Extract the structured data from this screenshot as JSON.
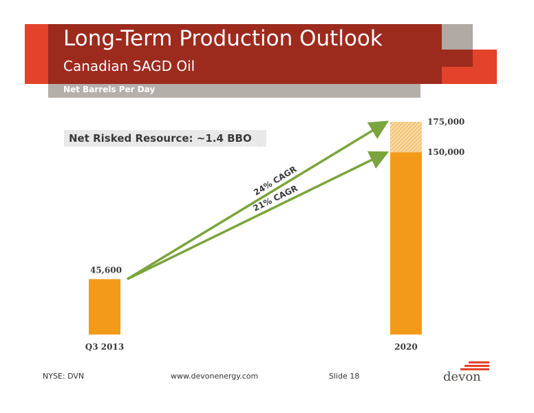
{
  "slide": {
    "title": "Long-Term Production Outlook",
    "subtitle": "Canadian SAGD Oil",
    "subbar_label": "Net Barrels Per Day",
    "resource_label": "Net Risked Resource:   ~1.4 BBO"
  },
  "chart_data": {
    "type": "bar",
    "ylabel": "Net Barrels Per Day",
    "categories": [
      "Q3 2013",
      "2020"
    ],
    "series": [
      {
        "values": [
          45600,
          150000
        ]
      },
      {
        "values": [
          0,
          25000
        ],
        "pattern": "hatched"
      }
    ],
    "value_labels": [
      "45,600",
      "150,000",
      "175,000"
    ],
    "annotations": [
      {
        "text": "24% CAGR",
        "from": [
          "Q3 2013",
          45600
        ],
        "to": [
          "2020",
          175000
        ]
      },
      {
        "text": "21% CAGR",
        "from": [
          "Q3 2013",
          45600
        ],
        "to": [
          "2020",
          150000
        ]
      }
    ],
    "colors": {
      "bar": "#f39a1a",
      "arrow": "#7aa43c",
      "label": "#3a3a3a"
    }
  },
  "footer": {
    "ticker": "NYSE: DVN",
    "url": "www.devonenergy.com",
    "slide": "Slide 18"
  },
  "logo": {
    "text": "devon",
    "icon": "devon-logo-icon"
  }
}
